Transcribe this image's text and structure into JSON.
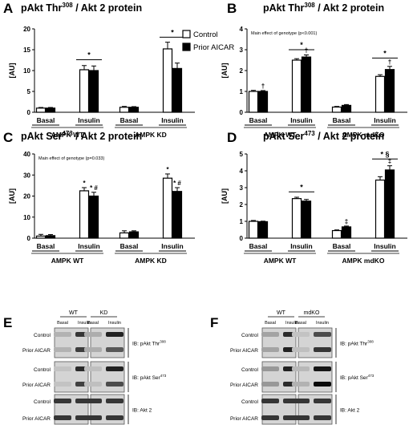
{
  "chart_data": [
    {
      "type": "bar",
      "panel_letter": "A",
      "title_main": "pAkt Thr",
      "title_sup": "308",
      "title_rest": " / Akt 2 protein",
      "ylabel": "[AU]",
      "ylim": [
        0,
        20
      ],
      "yticks": [
        0,
        5,
        10,
        15,
        20
      ],
      "note": "",
      "legend": {
        "control": "Control",
        "prior": "Prior AICAR"
      },
      "categories": [
        "Basal",
        "Insulin",
        "Basal",
        "Insulin"
      ],
      "groups": [
        "AMPK WT",
        "AMPK KD"
      ],
      "series": [
        {
          "name": "Control",
          "values": [
            1.0,
            10.2,
            1.2,
            15.2
          ],
          "errors": [
            0.15,
            1.0,
            0.2,
            1.6
          ]
        },
        {
          "name": "Prior AICAR",
          "values": [
            1.0,
            10.0,
            1.2,
            10.5
          ],
          "errors": [
            0.15,
            1.1,
            0.15,
            1.3
          ]
        }
      ],
      "bar_marks": [
        [],
        [],
        [],
        []
      ],
      "brackets": [
        {
          "start": 1,
          "end": 1,
          "label": "*",
          "y": 12.6,
          "sub": ""
        },
        {
          "start": 3,
          "end": 3,
          "label": "*",
          "y": 18.0,
          "sub": ""
        }
      ]
    },
    {
      "type": "bar",
      "panel_letter": "B",
      "title_main": "pAkt Thr",
      "title_sup": "308",
      "title_rest": " / Akt 2 protein",
      "ylabel": "[AU]",
      "ylim": [
        0,
        4
      ],
      "yticks": [
        0,
        1,
        2,
        3,
        4
      ],
      "note": "Main effect of genotype (p<0.001)",
      "categories": [
        "Basal",
        "Insulin",
        "Basal",
        "Insulin"
      ],
      "groups": [
        "AMPK WT",
        "AMPK mdKO"
      ],
      "series": [
        {
          "name": "Control",
          "values": [
            1.0,
            2.5,
            0.25,
            1.72
          ],
          "errors": [
            0.05,
            0.07,
            0.03,
            0.08
          ]
        },
        {
          "name": "Prior AICAR",
          "values": [
            1.0,
            2.65,
            0.33,
            2.05
          ],
          "errors": [
            0.04,
            0.1,
            0.04,
            0.15
          ]
        }
      ],
      "bar_marks": [
        [
          "",
          "†"
        ],
        [
          "",
          "†"
        ],
        [
          "",
          ""
        ],
        [
          "",
          "†"
        ]
      ],
      "brackets": [
        {
          "start": 1,
          "end": 1,
          "label": "*",
          "y": 3.0,
          "sub": ""
        },
        {
          "start": 3,
          "end": 3,
          "label": "*",
          "y": 2.6,
          "sub": ""
        }
      ]
    },
    {
      "type": "bar",
      "panel_letter": "C",
      "title_main": "pAkt Ser",
      "title_sup": "473",
      "title_rest": " / Akt 2 protein",
      "ylabel": "[AU]",
      "ylim": [
        0,
        40
      ],
      "yticks": [
        0,
        10,
        20,
        30,
        40
      ],
      "note": "Main effect of genotype (p=0.033)",
      "categories": [
        "Basal",
        "Insulin",
        "Basal",
        "Insulin"
      ],
      "groups": [
        "AMPK WT",
        "AMPK KD"
      ],
      "series": [
        {
          "name": "Control",
          "values": [
            1.0,
            22.5,
            2.5,
            28.5
          ],
          "errors": [
            0.8,
            1.5,
            1.0,
            2.0
          ]
        },
        {
          "name": "Prior AICAR",
          "values": [
            1.2,
            20.0,
            3.0,
            22.2
          ],
          "errors": [
            0.5,
            1.8,
            0.5,
            1.8
          ]
        }
      ],
      "bar_marks": [
        [
          "",
          ""
        ],
        [
          "*",
          "* #"
        ],
        [
          "",
          ""
        ],
        [
          "*",
          "* #"
        ]
      ],
      "brackets": []
    },
    {
      "type": "bar",
      "panel_letter": "D",
      "title_main": "pAkt Ser",
      "title_sup": "473",
      "title_rest": " / Akt 2 protein",
      "ylabel": "[AU]",
      "ylim": [
        0,
        5
      ],
      "yticks": [
        0,
        1,
        2,
        3,
        4,
        5
      ],
      "note": "",
      "categories": [
        "Basal",
        "Insulin",
        "Basal",
        "Insulin"
      ],
      "groups": [
        "AMPK WT",
        "AMPK mdKO"
      ],
      "series": [
        {
          "name": "Control",
          "values": [
            1.0,
            2.35,
            0.45,
            3.45
          ],
          "errors": [
            0.05,
            0.08,
            0.04,
            0.2
          ]
        },
        {
          "name": "Prior AICAR",
          "values": [
            0.98,
            2.2,
            0.67,
            4.05
          ],
          "errors": [
            0.03,
            0.1,
            0.05,
            0.25
          ]
        }
      ],
      "bar_marks": [
        [
          "",
          ""
        ],
        [
          "",
          ""
        ],
        [
          "",
          "‡"
        ],
        [
          "",
          "‡"
        ]
      ],
      "brackets": [
        {
          "start": 1,
          "end": 1,
          "label": "*",
          "y": 2.75,
          "sub": ""
        },
        {
          "start": 3,
          "end": 3,
          "label": "* §",
          "y": 4.7,
          "sub": ""
        }
      ]
    }
  ],
  "blots": [
    {
      "panel_letter": "E",
      "groups": [
        "WT",
        "KD"
      ],
      "lanes": [
        "Basal",
        "Insulin",
        "Basal",
        "Insulin"
      ],
      "rows": [
        {
          "label": "Control",
          "intensity": [
            0.18,
            0.75,
            0.2,
            0.85
          ]
        },
        {
          "label": "Prior AICAR",
          "intensity": [
            0.18,
            0.72,
            0.2,
            0.6
          ]
        },
        {
          "label": "Control",
          "intensity": [
            0.1,
            0.8,
            0.12,
            0.85
          ]
        },
        {
          "label": "Prior AICAR",
          "intensity": [
            0.1,
            0.7,
            0.12,
            0.65
          ]
        },
        {
          "label": "Control",
          "intensity": [
            0.75,
            0.75,
            0.75,
            0.75
          ]
        },
        {
          "label": "Prior AICAR",
          "intensity": [
            0.75,
            0.75,
            0.75,
            0.75
          ]
        }
      ],
      "ib_labels": [
        {
          "text": "IB: pAkt Thr",
          "sup": "308"
        },
        {
          "text": "IB: pAkt Ser",
          "sup": "473"
        },
        {
          "text": "IB: Akt 2",
          "sup": ""
        }
      ]
    },
    {
      "panel_letter": "F",
      "groups": [
        "WT",
        "mdKO"
      ],
      "lanes": [
        "Basal",
        "Insulin",
        "Basal",
        "Insulin"
      ],
      "rows": [
        {
          "label": "Control",
          "intensity": [
            0.25,
            0.8,
            0.1,
            0.65
          ]
        },
        {
          "label": "Prior AICAR",
          "intensity": [
            0.25,
            0.85,
            0.12,
            0.75
          ]
        },
        {
          "label": "Control",
          "intensity": [
            0.3,
            0.85,
            0.15,
            0.9
          ]
        },
        {
          "label": "Prior AICAR",
          "intensity": [
            0.3,
            0.8,
            0.18,
            0.95
          ]
        },
        {
          "label": "Control",
          "intensity": [
            0.75,
            0.75,
            0.75,
            0.75
          ]
        },
        {
          "label": "Prior AICAR",
          "intensity": [
            0.75,
            0.75,
            0.75,
            0.75
          ]
        }
      ],
      "ib_labels": [
        {
          "text": "IB: pAkt Thr",
          "sup": "308"
        },
        {
          "text": "IB: pAkt Ser",
          "sup": "473"
        },
        {
          "text": "IB: Akt 2",
          "sup": ""
        }
      ]
    }
  ]
}
